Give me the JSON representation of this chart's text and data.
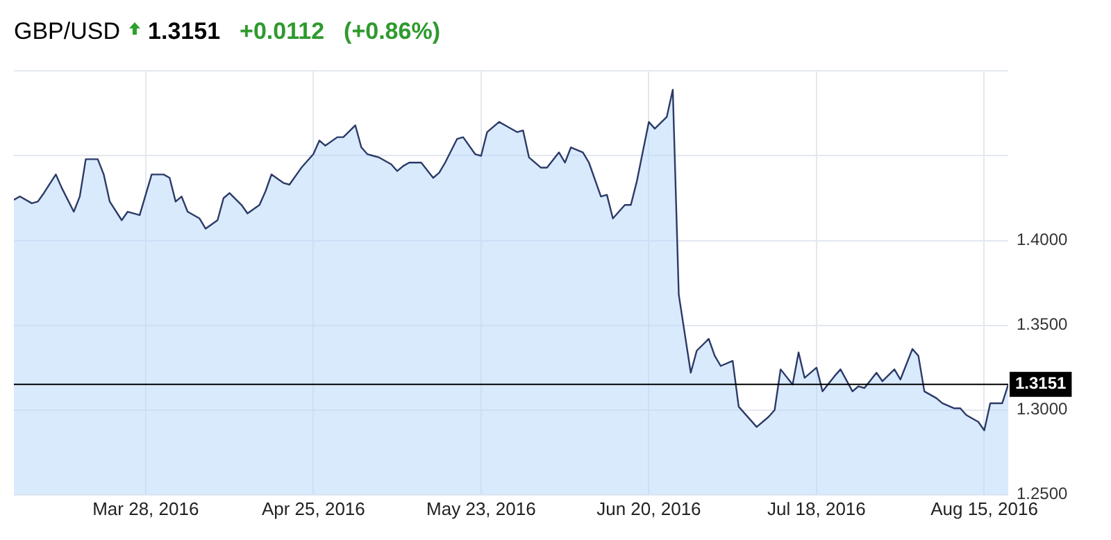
{
  "chart_data": {
    "type": "area",
    "title": "GBP/USD",
    "annotations": [
      "1.3151",
      "+0.0112",
      "(+0.86%)"
    ],
    "x": [
      "2016-03-06",
      "2016-03-07",
      "2016-03-09",
      "2016-03-10",
      "2016-03-11",
      "2016-03-13",
      "2016-03-14",
      "2016-03-16",
      "2016-03-17",
      "2016-03-18",
      "2016-03-20",
      "2016-03-21",
      "2016-03-22",
      "2016-03-24",
      "2016-03-25",
      "2016-03-27",
      "2016-03-28",
      "2016-03-29",
      "2016-03-31",
      "2016-04-01",
      "2016-04-02",
      "2016-04-03",
      "2016-04-04",
      "2016-04-06",
      "2016-04-07",
      "2016-04-09",
      "2016-04-10",
      "2016-04-11",
      "2016-04-13",
      "2016-04-14",
      "2016-04-16",
      "2016-04-17",
      "2016-04-18",
      "2016-04-20",
      "2016-04-21",
      "2016-04-23",
      "2016-04-25",
      "2016-04-26",
      "2016-04-27",
      "2016-04-29",
      "2016-04-30",
      "2016-05-02",
      "2016-05-03",
      "2016-05-04",
      "2016-05-05",
      "2016-05-06",
      "2016-05-08",
      "2016-05-09",
      "2016-05-10",
      "2016-05-11",
      "2016-05-13",
      "2016-05-15",
      "2016-05-16",
      "2016-05-17",
      "2016-05-19",
      "2016-05-20",
      "2016-05-22",
      "2016-05-23",
      "2016-05-24",
      "2016-05-26",
      "2016-05-27",
      "2016-05-29",
      "2016-05-30",
      "2016-05-31",
      "2016-06-02",
      "2016-06-03",
      "2016-06-05",
      "2016-06-06",
      "2016-06-07",
      "2016-06-09",
      "2016-06-10",
      "2016-06-12",
      "2016-06-13",
      "2016-06-14",
      "2016-06-16",
      "2016-06-17",
      "2016-06-18",
      "2016-06-20",
      "2016-06-21",
      "2016-06-23",
      "2016-06-24",
      "2016-06-25",
      "2016-06-27",
      "2016-06-28",
      "2016-06-30",
      "2016-07-01",
      "2016-07-02",
      "2016-07-04",
      "2016-07-05",
      "2016-07-07",
      "2016-07-08",
      "2016-07-10",
      "2016-07-11",
      "2016-07-12",
      "2016-07-14",
      "2016-07-15",
      "2016-07-16",
      "2016-07-18",
      "2016-07-19",
      "2016-07-21",
      "2016-07-22",
      "2016-07-24",
      "2016-07-25",
      "2016-07-26",
      "2016-07-28",
      "2016-07-29",
      "2016-07-31",
      "2016-08-01",
      "2016-08-03",
      "2016-08-04",
      "2016-08-05",
      "2016-08-07",
      "2016-08-08",
      "2016-08-10",
      "2016-08-11",
      "2016-08-12",
      "2016-08-14",
      "2016-08-15",
      "2016-08-16",
      "2016-08-18",
      "2016-08-19"
    ],
    "series": [
      {
        "color": "#2b3a67",
        "values": [
          1.424,
          1.426,
          1.422,
          1.423,
          1.428,
          1.439,
          1.431,
          1.417,
          1.426,
          1.448,
          1.448,
          1.439,
          1.423,
          1.412,
          1.417,
          1.415,
          1.427,
          1.439,
          1.439,
          1.437,
          1.423,
          1.426,
          1.417,
          1.413,
          1.407,
          1.412,
          1.425,
          1.428,
          1.421,
          1.416,
          1.421,
          1.429,
          1.439,
          1.434,
          1.433,
          1.443,
          1.451,
          1.459,
          1.456,
          1.461,
          1.461,
          1.468,
          1.455,
          1.451,
          1.45,
          1.449,
          1.445,
          1.441,
          1.444,
          1.446,
          1.446,
          1.437,
          1.44,
          1.446,
          1.46,
          1.461,
          1.451,
          1.45,
          1.464,
          1.47,
          1.468,
          1.464,
          1.465,
          1.449,
          1.443,
          1.443,
          1.452,
          1.446,
          1.455,
          1.452,
          1.446,
          1.426,
          1.427,
          1.413,
          1.421,
          1.421,
          1.435,
          1.47,
          1.466,
          1.473,
          1.489,
          1.368,
          1.322,
          1.335,
          1.342,
          1.332,
          1.326,
          1.329,
          1.302,
          1.294,
          1.29,
          1.296,
          1.3,
          1.324,
          1.315,
          1.334,
          1.319,
          1.325,
          1.311,
          1.32,
          1.324,
          1.311,
          1.314,
          1.313,
          1.322,
          1.317,
          1.324,
          1.318,
          1.336,
          1.332,
          1.311,
          1.307,
          1.304,
          1.301,
          1.301,
          1.297,
          1.293,
          1.288,
          1.304,
          1.304,
          1.315
        ]
      }
    ],
    "xlim": [
      "2016-03-06",
      "2016-08-19"
    ],
    "xticks": [
      {
        "value": "2016-03-28",
        "label": "Mar 28, 2016"
      },
      {
        "value": "2016-04-25",
        "label": "Apr 25, 2016"
      },
      {
        "value": "2016-05-23",
        "label": "May 23, 2016"
      },
      {
        "value": "2016-06-20",
        "label": "Jun 20, 2016"
      },
      {
        "value": "2016-07-18",
        "label": "Jul 18, 2016"
      },
      {
        "value": "2016-08-15",
        "label": "Aug 15, 2016"
      }
    ],
    "ylim": [
      1.25,
      1.5
    ],
    "yticks": [
      {
        "value": 1.25,
        "label": "1.2500"
      },
      {
        "value": 1.3,
        "label": "1.3000"
      },
      {
        "value": 1.35,
        "label": "1.3500"
      },
      {
        "value": 1.4,
        "label": "1.4000"
      },
      {
        "value": 1.45,
        "label": null
      },
      {
        "value": 1.5,
        "label": null
      }
    ],
    "ref_lines": [
      {
        "axis": "y",
        "value": 1.3151,
        "label": "1.3151",
        "color": "#000000"
      }
    ],
    "grid": true
  }
}
